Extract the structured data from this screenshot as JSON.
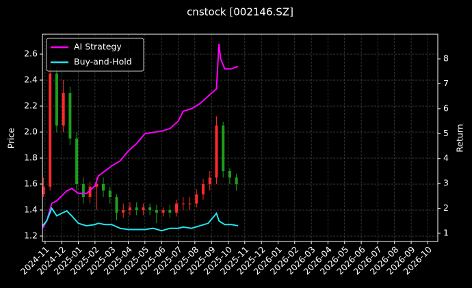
{
  "chart_data": {
    "type": "candlestick",
    "title": "cnstock [002146.SZ]",
    "ylabel": "Price",
    "y2label": "Return",
    "background": "#000000",
    "grid": true,
    "legend": "upper left",
    "up_color": "#ff2a2a",
    "down_color": "#1e9e1e",
    "xlim": [
      -0.16,
      23.6
    ],
    "ylim": [
      1.158,
      2.753
    ],
    "y2lim": [
      0.67,
      8.99
    ],
    "xticks": [
      {
        "value": 0,
        "label": "2024-11"
      },
      {
        "value": 1,
        "label": "2024-12"
      },
      {
        "value": 2,
        "label": "2025-01"
      },
      {
        "value": 3,
        "label": "2025-02"
      },
      {
        "value": 4,
        "label": "2025-03"
      },
      {
        "value": 5,
        "label": "2025-04"
      },
      {
        "value": 6,
        "label": "2025-05"
      },
      {
        "value": 7,
        "label": "2025-06"
      },
      {
        "value": 8,
        "label": "2025-07"
      },
      {
        "value": 9,
        "label": "2025-08"
      },
      {
        "value": 10,
        "label": "2025-09"
      },
      {
        "value": 11,
        "label": "2025-10"
      },
      {
        "value": 12,
        "label": "2025-11"
      },
      {
        "value": 13,
        "label": "2025-12"
      },
      {
        "value": 14,
        "label": "2026-01"
      },
      {
        "value": 15,
        "label": "2026-02"
      },
      {
        "value": 16,
        "label": "2026-03"
      },
      {
        "value": 17,
        "label": "2026-04"
      },
      {
        "value": 18,
        "label": "2026-05"
      },
      {
        "value": 19,
        "label": "2026-06"
      },
      {
        "value": 20,
        "label": "2026-07"
      },
      {
        "value": 21,
        "label": "2026-08"
      },
      {
        "value": 22,
        "label": "2026-09"
      },
      {
        "value": 23,
        "label": "2026-10"
      }
    ],
    "yticks": [
      1.2,
      1.4,
      1.6,
      1.8,
      {
        "value": 2,
        "label": "2.0"
      },
      2.2,
      2.4,
      2.6
    ],
    "y2ticks": [
      1,
      2,
      3,
      4,
      5,
      6,
      7,
      8
    ],
    "candles": {
      "x": [
        -0.1,
        0.3,
        0.7,
        1.1,
        1.5,
        1.9,
        2.3,
        2.7,
        3.1,
        3.5,
        3.9,
        4.3,
        4.7,
        5.1,
        5.5,
        5.9,
        6.3,
        6.7,
        7.1,
        7.5,
        7.9,
        8.3,
        8.7,
        9.1,
        9.5,
        9.9,
        10.3,
        10.7,
        11.1,
        11.5
      ],
      "open": [
        1.52,
        1.58,
        2.45,
        2.05,
        2.3,
        1.95,
        1.6,
        1.5,
        1.58,
        1.6,
        1.55,
        1.5,
        1.38,
        1.4,
        1.42,
        1.4,
        1.42,
        1.4,
        1.38,
        1.4,
        1.38,
        1.45,
        1.45,
        1.45,
        1.52,
        1.6,
        1.65,
        2.05,
        1.7,
        1.65
      ],
      "high": [
        1.65,
        2.55,
        2.5,
        2.4,
        2.35,
        2.0,
        1.65,
        1.62,
        1.65,
        1.65,
        1.58,
        1.52,
        1.45,
        1.46,
        1.46,
        1.45,
        1.45,
        1.44,
        1.42,
        1.44,
        1.48,
        1.5,
        1.5,
        1.56,
        1.64,
        1.7,
        2.12,
        2.08,
        1.72,
        1.68
      ],
      "low": [
        1.5,
        1.55,
        2.0,
        2.0,
        1.9,
        1.55,
        1.45,
        1.45,
        1.4,
        1.5,
        1.45,
        1.32,
        1.34,
        1.36,
        1.36,
        1.36,
        1.36,
        1.3,
        1.35,
        1.34,
        1.35,
        1.4,
        1.4,
        1.42,
        1.48,
        1.55,
        1.6,
        1.65,
        1.6,
        1.55
      ],
      "close": [
        1.58,
        2.45,
        2.05,
        2.3,
        1.95,
        1.6,
        1.5,
        1.58,
        1.6,
        1.55,
        1.5,
        1.38,
        1.4,
        1.42,
        1.4,
        1.42,
        1.4,
        1.38,
        1.4,
        1.38,
        1.45,
        1.45,
        1.45,
        1.52,
        1.6,
        1.65,
        2.05,
        1.7,
        1.65,
        1.6
      ]
    },
    "x": [
      -0.15,
      0.1,
      0.4,
      0.7,
      1.0,
      1.3,
      1.6,
      2.0,
      2.5,
      3.0,
      3.2,
      3.6,
      4.0,
      4.5,
      5.0,
      5.5,
      6.0,
      6.5,
      7.0,
      7.5,
      8.0,
      8.3,
      8.8,
      9.3,
      9.8,
      10.3,
      10.45,
      10.55,
      10.8,
      11.2,
      11.6
    ],
    "series": [
      {
        "name": "AI Strategy",
        "color": "#ff00ff",
        "axis": "y2",
        "values": [
          1.2,
          1.5,
          2.2,
          2.3,
          2.5,
          2.7,
          2.8,
          2.6,
          2.6,
          2.9,
          3.3,
          3.5,
          3.7,
          3.9,
          4.3,
          4.6,
          5.0,
          5.05,
          5.1,
          5.2,
          5.5,
          5.9,
          6.0,
          6.2,
          6.5,
          6.8,
          8.6,
          8.0,
          7.6,
          7.6,
          7.7
        ]
      },
      {
        "name": "Buy-and-Hold",
        "color": "#1ee6f0",
        "axis": "y2",
        "values": [
          1.3,
          1.5,
          2.0,
          1.7,
          1.8,
          1.9,
          1.7,
          1.4,
          1.3,
          1.35,
          1.4,
          1.35,
          1.35,
          1.2,
          1.15,
          1.15,
          1.15,
          1.2,
          1.1,
          1.2,
          1.2,
          1.25,
          1.2,
          1.3,
          1.4,
          1.8,
          1.5,
          1.45,
          1.35,
          1.35,
          1.3
        ]
      }
    ]
  }
}
